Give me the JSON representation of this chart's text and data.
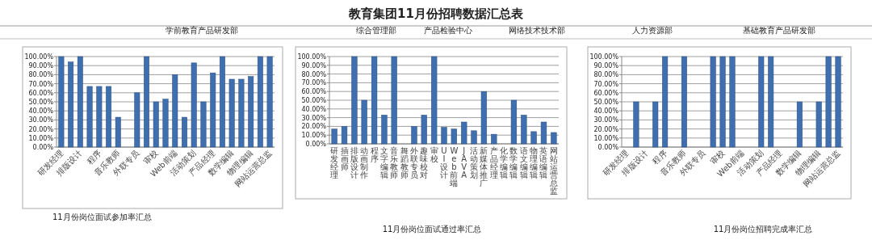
{
  "chart_data": [
    {
      "type": "bar",
      "title": "11月份岗位面试参加率汇总",
      "annotations": [
        "教育集团11月份招聘数据汇总表",
        "学前教育产品研发部",
        "综合管理部",
        "产品检验中心",
        "网络技术技术部",
        "人力资源部",
        "基础教育产品研发部"
      ],
      "categories": [
        "研发经理",
        null,
        "排版设计",
        null,
        "程序",
        null,
        "音乐教师",
        null,
        "外联专员",
        null,
        "审校",
        null,
        "Web前端",
        null,
        "活动策划",
        null,
        "产品经理",
        null,
        "数学编辑",
        null,
        "物理编辑",
        null,
        "网站运营总监"
      ],
      "values": [
        100,
        94,
        100,
        67,
        67,
        67,
        33,
        0,
        60,
        100,
        50,
        53,
        80,
        33,
        93,
        50,
        82,
        100,
        75,
        75,
        78,
        100,
        100
      ],
      "color": "#3f6fae",
      "ylim": [
        0,
        100
      ],
      "yticks": [
        {
          "value": 0,
          "label": "0.00%"
        },
        {
          "value": 10,
          "label": "10.00%"
        },
        {
          "value": 20,
          "label": "20.00%"
        },
        {
          "value": 30,
          "label": "30.00%"
        },
        {
          "value": 40,
          "label": "40.00%"
        },
        {
          "value": 50,
          "label": "50.00%"
        },
        {
          "value": 60,
          "label": "60.00%"
        },
        {
          "value": 70,
          "label": "70.00%"
        },
        {
          "value": 80,
          "label": "80.00%"
        },
        {
          "value": 90,
          "label": "90.00%"
        },
        {
          "value": 100,
          "label": "100.00%"
        }
      ],
      "grid": "y"
    },
    {
      "type": "bar",
      "title": "11月份岗位面试通过率汇总",
      "categories": [
        "研发经理",
        "插画师",
        "排版设计",
        "动画制作",
        "程序",
        "文字编辑",
        "音乐教师",
        "舞蹈教师",
        "外联专员",
        "趣味校对",
        "审校",
        "UI设计",
        "Web前端",
        "JAVA",
        "活动策划",
        "新媒体推广",
        "产品经理",
        "化学编辑",
        "数学编辑",
        "语文编辑",
        "物理编辑",
        "英语编辑",
        "网站运营总监"
      ],
      "values": [
        17,
        20,
        100,
        50,
        100,
        33,
        100,
        0,
        20,
        33,
        100,
        19,
        17,
        25,
        15,
        60,
        11,
        0,
        50,
        33,
        14,
        25,
        13
      ],
      "color": "#3f6fae",
      "ylim": [
        0,
        100
      ],
      "yticks": [
        {
          "value": 0,
          "label": "0.00%"
        },
        {
          "value": 10,
          "label": "10.00%"
        },
        {
          "value": 20,
          "label": "20.00%"
        },
        {
          "value": 30,
          "label": "30.00%"
        },
        {
          "value": 40,
          "label": "40.00%"
        },
        {
          "value": 50,
          "label": "50.00%"
        },
        {
          "value": 60,
          "label": "60.00%"
        },
        {
          "value": 70,
          "label": "70.00%"
        },
        {
          "value": 80,
          "label": "80.00%"
        },
        {
          "value": 90,
          "label": "90.00%"
        },
        {
          "value": 100,
          "label": "100.00%"
        }
      ],
      "grid": "y"
    },
    {
      "type": "bar",
      "title": "11月份岗位招聘完成率汇总",
      "categories": [
        "研发经理",
        null,
        "排版设计",
        null,
        "程序",
        null,
        "音乐教师",
        null,
        "外联专员",
        null,
        "审校",
        null,
        "Web前端",
        null,
        "活动策划",
        null,
        "产品经理",
        null,
        "数学编辑",
        null,
        "物理编辑",
        null,
        "网站运营总监"
      ],
      "values": [
        0,
        50,
        0,
        50,
        100,
        0,
        100,
        0,
        0,
        100,
        100,
        100,
        0,
        0,
        100,
        100,
        0,
        0,
        50,
        0,
        50,
        100,
        100
      ],
      "color": "#3f6fae",
      "ylim": [
        0,
        100
      ],
      "yticks": [
        {
          "value": 0,
          "label": "0.00%"
        },
        {
          "value": 10,
          "label": "10.00%"
        },
        {
          "value": 20,
          "label": "20.00%"
        },
        {
          "value": 30,
          "label": "30.00%"
        },
        {
          "value": 40,
          "label": "40.00%"
        },
        {
          "value": 50,
          "label": "50.00%"
        },
        {
          "value": 60,
          "label": "60.00%"
        },
        {
          "value": 70,
          "label": "70.00%"
        },
        {
          "value": 80,
          "label": "80.00%"
        },
        {
          "value": 90,
          "label": "90.00%"
        },
        {
          "value": 100,
          "label": "100.00%"
        }
      ],
      "grid": "y"
    }
  ]
}
